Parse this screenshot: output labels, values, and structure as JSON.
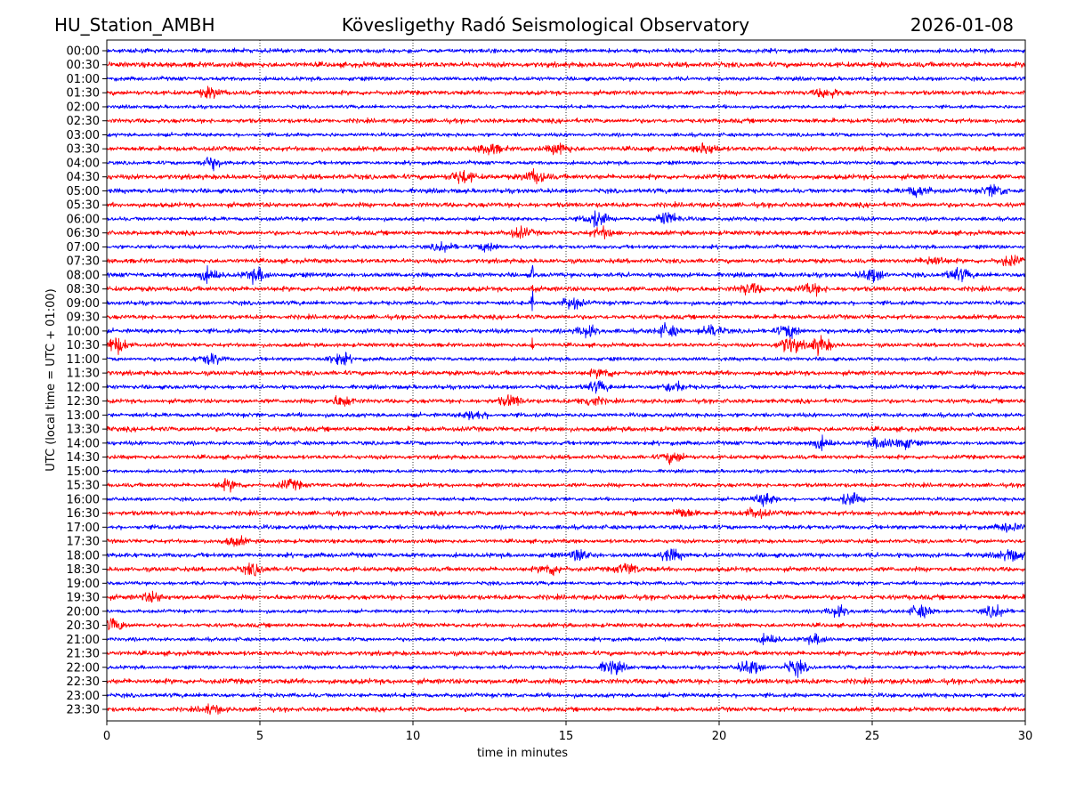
{
  "header": {
    "station": "HU_Station_AMBH",
    "title": "Kövesligethy Radó Seismological Observatory",
    "date": "2026-01-08"
  },
  "chart_data": {
    "type": "line",
    "title": "Kövesligethy Radó Seismological Observatory",
    "xlabel": "time in minutes",
    "ylabel": "UTC (local time = UTC + 01:00)",
    "xlim": [
      0,
      30
    ],
    "xticks": [
      "0",
      "5",
      "10",
      "15",
      "20",
      "25",
      "30"
    ],
    "grid": "vertical dotted at x ticks",
    "colors": [
      "#0000ff",
      "#ff0000"
    ],
    "rows": [
      "00:00",
      "00:30",
      "01:00",
      "01:30",
      "02:00",
      "02:30",
      "03:00",
      "03:30",
      "04:00",
      "04:30",
      "05:00",
      "05:30",
      "06:00",
      "06:30",
      "07:00",
      "07:30",
      "08:00",
      "08:30",
      "09:00",
      "09:30",
      "10:00",
      "10:30",
      "11:00",
      "11:30",
      "12:00",
      "12:30",
      "13:00",
      "13:30",
      "14:00",
      "14:30",
      "15:00",
      "15:30",
      "16:00",
      "16:30",
      "17:00",
      "17:30",
      "18:00",
      "18:30",
      "19:00",
      "19:30",
      "20:00",
      "20:30",
      "21:00",
      "21:30",
      "22:00",
      "22:30",
      "23:00",
      "23:30"
    ],
    "events": [
      {
        "row": "01:30",
        "minutes": [
          3.4,
          23.5
        ],
        "amplitude": 1.6
      },
      {
        "row": "03:30",
        "minutes": [
          12.5,
          14.8,
          19.6
        ],
        "amplitude": 1.8
      },
      {
        "row": "04:00",
        "minutes": [
          3.4
        ],
        "amplitude": 1.8
      },
      {
        "row": "04:30",
        "minutes": [
          11.6,
          14.0
        ],
        "amplitude": 2.2
      },
      {
        "row": "05:00",
        "minutes": [
          26.5,
          29.0
        ],
        "amplitude": 1.8
      },
      {
        "row": "06:00",
        "minutes": [
          16.0,
          18.3
        ],
        "amplitude": 2.5
      },
      {
        "row": "06:30",
        "minutes": [
          13.5,
          16.2
        ],
        "amplitude": 1.6
      },
      {
        "row": "07:00",
        "minutes": [
          11.0,
          12.5
        ],
        "amplitude": 1.4
      },
      {
        "row": "07:30",
        "minutes": [
          27.0,
          29.5
        ],
        "amplitude": 1.6
      },
      {
        "row": "08:00",
        "minutes": [
          3.3,
          4.9,
          25.0,
          27.8
        ],
        "amplitude": 2.0
      },
      {
        "row": "08:30",
        "minutes": [
          21.0,
          23.0
        ],
        "amplitude": 1.8
      },
      {
        "row": "09:00",
        "minutes": [
          15.2
        ],
        "amplitude": 1.8
      },
      {
        "row": "10:00",
        "minutes": [
          15.7,
          18.3,
          19.8,
          22.3
        ],
        "amplitude": 2.0
      },
      {
        "row": "10:30",
        "minutes": [
          0.3,
          22.3,
          23.3
        ],
        "amplitude": 2.8
      },
      {
        "row": "11:00",
        "minutes": [
          3.4,
          7.6
        ],
        "amplitude": 2.0
      },
      {
        "row": "11:30",
        "minutes": [
          16.2
        ],
        "amplitude": 1.4
      },
      {
        "row": "12:00",
        "minutes": [
          16.0,
          18.5
        ],
        "amplitude": 1.6
      },
      {
        "row": "12:30",
        "minutes": [
          7.7,
          13.2,
          15.8
        ],
        "amplitude": 1.8
      },
      {
        "row": "13:00",
        "minutes": [
          12.0
        ],
        "amplitude": 1.6
      },
      {
        "row": "14:00",
        "minutes": [
          23.3,
          25.3,
          26.0
        ],
        "amplitude": 1.8
      },
      {
        "row": "14:30",
        "minutes": [
          18.5
        ],
        "amplitude": 1.8
      },
      {
        "row": "15:30",
        "minutes": [
          4.0,
          6.0
        ],
        "amplitude": 1.6
      },
      {
        "row": "16:00",
        "minutes": [
          21.5,
          24.3
        ],
        "amplitude": 2.0
      },
      {
        "row": "16:30",
        "minutes": [
          18.8,
          21.2
        ],
        "amplitude": 1.6
      },
      {
        "row": "17:00",
        "minutes": [
          29.5
        ],
        "amplitude": 1.4
      },
      {
        "row": "17:30",
        "minutes": [
          4.2
        ],
        "amplitude": 1.4
      },
      {
        "row": "18:00",
        "minutes": [
          15.5,
          18.4,
          29.5
        ],
        "amplitude": 1.8
      },
      {
        "row": "18:30",
        "minutes": [
          4.8,
          14.5,
          17.0
        ],
        "amplitude": 1.8
      },
      {
        "row": "19:30",
        "minutes": [
          1.5
        ],
        "amplitude": 1.4
      },
      {
        "row": "20:00",
        "minutes": [
          23.9,
          26.6,
          29.0
        ],
        "amplitude": 2.0
      },
      {
        "row": "20:30",
        "minutes": [
          0.2
        ],
        "amplitude": 2.2
      },
      {
        "row": "21:00",
        "minutes": [
          21.6,
          23.2
        ],
        "amplitude": 1.4
      },
      {
        "row": "22:00",
        "minutes": [
          16.5,
          21.0,
          22.5
        ],
        "amplitude": 2.4
      },
      {
        "row": "23:30",
        "minutes": [
          3.4
        ],
        "amplitude": 1.5
      }
    ],
    "spikes": [
      {
        "row": "08:00",
        "minute": 13.9
      },
      {
        "row": "08:30",
        "minute": 13.9
      },
      {
        "row": "09:00",
        "minute": 13.9
      },
      {
        "row": "10:30",
        "minute": 13.9
      }
    ]
  }
}
